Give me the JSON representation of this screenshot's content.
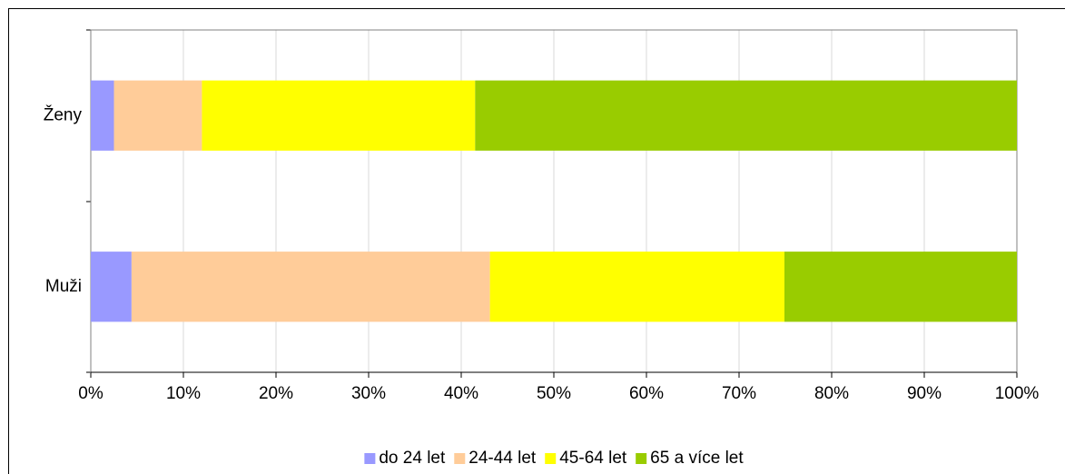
{
  "chart_data": {
    "type": "bar",
    "orientation": "horizontal",
    "stacked": true,
    "categories": [
      "Ženy",
      "Muži"
    ],
    "series": [
      {
        "name": "do 24 let",
        "color": "#9999ff",
        "values": [
          2.5,
          4.4
        ]
      },
      {
        "name": "24-44 let",
        "color": "#ffcc99",
        "values": [
          9.5,
          38.7
        ]
      },
      {
        "name": "45-64 let",
        "color": "#ffff00",
        "values": [
          29.5,
          31.8
        ]
      },
      {
        "name": "65 a více let",
        "color": "#99cc00",
        "values": [
          58.5,
          25.1
        ]
      }
    ],
    "xlim": [
      0,
      100
    ],
    "xticks": [
      {
        "value": 0,
        "label": "0%"
      },
      {
        "value": 10,
        "label": "10%"
      },
      {
        "value": 20,
        "label": "20%"
      },
      {
        "value": 30,
        "label": "30%"
      },
      {
        "value": 40,
        "label": "40%"
      },
      {
        "value": 50,
        "label": "50%"
      },
      {
        "value": 60,
        "label": "60%"
      },
      {
        "value": 70,
        "label": "70%"
      },
      {
        "value": 80,
        "label": "80%"
      },
      {
        "value": 90,
        "label": "90%"
      },
      {
        "value": 100,
        "label": "100%"
      }
    ],
    "grid": true,
    "legend": "bottom"
  }
}
